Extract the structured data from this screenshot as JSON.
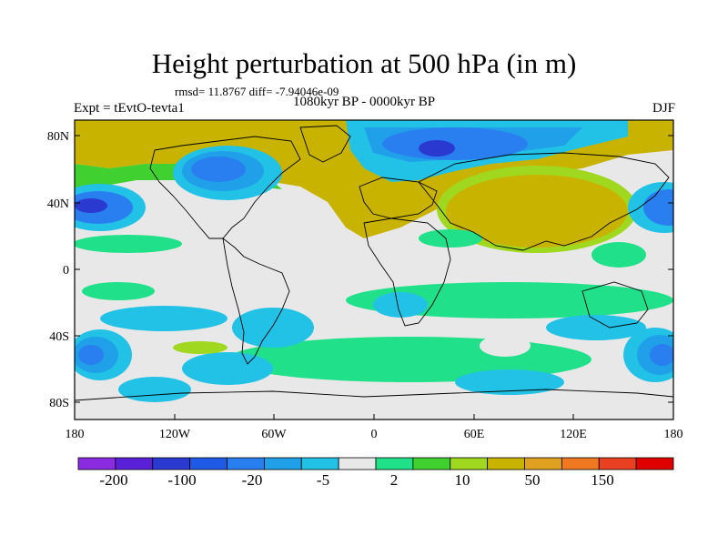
{
  "title": "Height perturbation at 500 hPa (in m)",
  "rmsd_text": "rmsd= 11.8767 diff= -7.94046e-09",
  "period_text": "1080kyr BP - 0000kyr BP",
  "expt_text": "Expt = tEvtO-tevta1",
  "season_text": "DJF",
  "colors": {
    "land_outline": "#000000",
    "levels": [
      "#8a2be2",
      "#5a20d8",
      "#2a3ad0",
      "#1e5ae6",
      "#2a7ff0",
      "#1fa0e8",
      "#22c2e6",
      "#e8e8e8",
      "#20e08a",
      "#40d030",
      "#a0d820",
      "#c8b400",
      "#e0a020",
      "#f07820",
      "#e84020",
      "#e00000"
    ]
  },
  "lat_labels": [
    "80N",
    "40N",
    "0",
    "40S",
    "80S"
  ],
  "lon_labels": [
    "180",
    "120W",
    "60W",
    "0",
    "60E",
    "120E",
    "180"
  ],
  "colorbar_labels": [
    "-200",
    "-100",
    "-20",
    "-5",
    "2",
    "10",
    "50",
    "150"
  ]
}
